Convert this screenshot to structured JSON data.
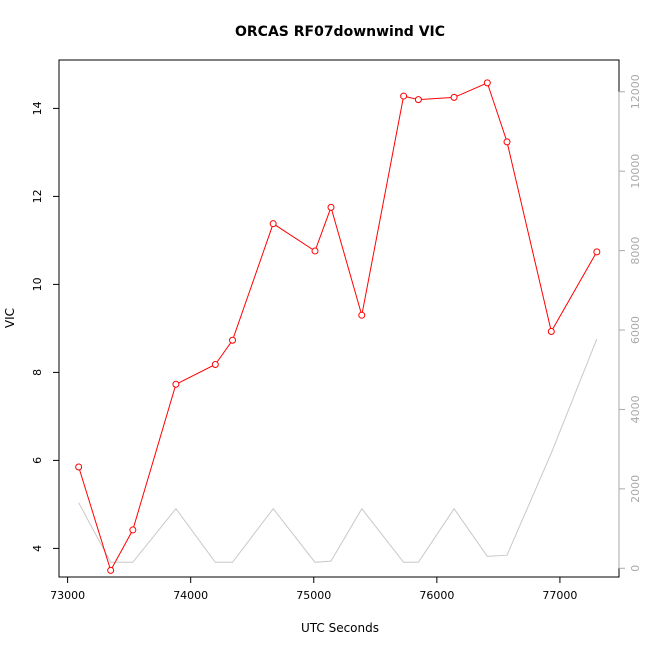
{
  "chart_data": {
    "type": "line",
    "title": "ORCAS RF07downwind VIC",
    "xlabel": "UTC Seconds",
    "ylabel": "VIC",
    "xlim": [
      72930,
      77480
    ],
    "ylim": [
      3.35,
      15.1
    ],
    "y2lim": [
      -220,
      12800
    ],
    "x_ticks": [
      73000,
      74000,
      75000,
      76000,
      77000
    ],
    "y_ticks": [
      4,
      6,
      8,
      10,
      12,
      14
    ],
    "y2_ticks": [
      0,
      2000,
      4000,
      6000,
      8000,
      10000,
      12000
    ],
    "grid": false,
    "series": [
      {
        "axis": "left",
        "color": "#ff0000",
        "markers": "open-circle",
        "x": [
          73090,
          73350,
          73530,
          73880,
          74200,
          74340,
          74670,
          75010,
          75140,
          75390,
          75730,
          75850,
          76140,
          76410,
          76570,
          76930,
          77300
        ],
        "values": [
          5.85,
          3.5,
          4.42,
          7.73,
          8.18,
          8.73,
          11.38,
          10.76,
          11.75,
          9.3,
          14.28,
          14.2,
          14.25,
          14.58,
          13.24,
          8.93,
          10.74
        ]
      },
      {
        "axis": "right",
        "color": "#c8c8c8",
        "markers": "none",
        "x": [
          73090,
          73350,
          73530,
          73880,
          74200,
          74340,
          74670,
          75010,
          75140,
          75390,
          75730,
          75850,
          76140,
          76410,
          76570,
          76930,
          77300
        ],
        "values": [
          1650,
          150,
          150,
          1500,
          150,
          150,
          1500,
          150,
          180,
          1500,
          150,
          150,
          1500,
          300,
          330,
          2900,
          5770
        ]
      }
    ]
  }
}
